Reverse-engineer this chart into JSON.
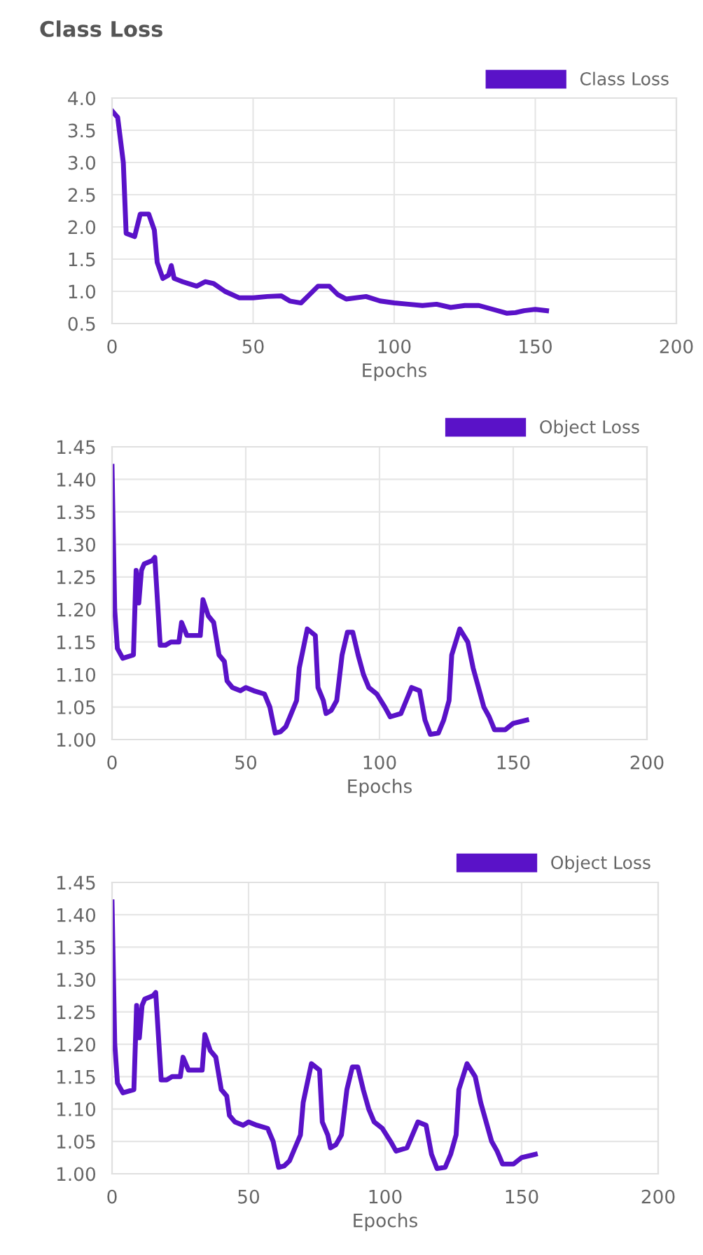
{
  "chart_data": [
    {
      "type": "line",
      "title": "Class Loss",
      "xlabel": "Epochs",
      "xlim": [
        0,
        200
      ],
      "xticks": [
        0,
        50,
        100,
        150,
        200
      ],
      "ylim": [
        0.5,
        4.0
      ],
      "yticks": [
        {
          "value": 0.5,
          "label": "0.5"
        },
        {
          "value": 1.0,
          "label": "1.0"
        },
        {
          "value": 1.5,
          "label": "1.5"
        },
        {
          "value": 2.0,
          "label": "2.0"
        },
        {
          "value": 2.5,
          "label": "2.5"
        },
        {
          "value": 3.0,
          "label": "3.0"
        },
        {
          "value": 3.5,
          "label": "3.5"
        },
        {
          "value": 4.0,
          "label": "4.0"
        }
      ],
      "grid": true,
      "legend": "top right",
      "series": [
        {
          "name": "Class Loss",
          "color": "#5a12c8",
          "x": [
            0,
            2,
            4,
            5,
            8,
            10,
            13,
            15,
            16,
            18,
            20,
            21,
            22,
            25,
            30,
            33,
            36,
            40,
            45,
            50,
            55,
            60,
            63,
            67,
            70,
            73,
            77,
            80,
            83,
            90,
            95,
            100,
            105,
            110,
            115,
            120,
            125,
            130,
            135,
            140,
            143,
            146,
            150,
            154
          ],
          "values": [
            3.8,
            3.7,
            3.0,
            1.9,
            1.85,
            2.2,
            2.2,
            1.95,
            1.45,
            1.2,
            1.25,
            1.4,
            1.2,
            1.15,
            1.08,
            1.15,
            1.12,
            1.0,
            0.9,
            0.9,
            0.92,
            0.93,
            0.85,
            0.82,
            0.95,
            1.08,
            1.08,
            0.95,
            0.88,
            0.92,
            0.85,
            0.82,
            0.8,
            0.78,
            0.8,
            0.75,
            0.78,
            0.78,
            0.72,
            0.66,
            0.67,
            0.7,
            0.72,
            0.7
          ]
        }
      ]
    },
    {
      "type": "line",
      "xlabel": "Epochs",
      "xlim": [
        0,
        200
      ],
      "xticks": [
        0,
        50,
        100,
        150,
        200
      ],
      "ylim": [
        1.0,
        1.45
      ],
      "yticks": [
        {
          "value": 1.0,
          "label": "1.00"
        },
        {
          "value": 1.05,
          "label": "1.05"
        },
        {
          "value": 1.1,
          "label": "1.10"
        },
        {
          "value": 1.15,
          "label": "1.15"
        },
        {
          "value": 1.2,
          "label": "1.20"
        },
        {
          "value": 1.25,
          "label": "1.25"
        },
        {
          "value": 1.3,
          "label": "1.30"
        },
        {
          "value": 1.35,
          "label": "1.35"
        },
        {
          "value": 1.4,
          "label": "1.40"
        },
        {
          "value": 1.45,
          "label": "1.45"
        }
      ],
      "grid": true,
      "legend": "top right",
      "series": [
        {
          "name": "Object Loss",
          "color": "#5a12c8",
          "x": [
            0,
            1,
            2,
            4,
            8,
            9,
            10,
            11,
            12,
            15,
            16,
            18,
            20,
            22,
            25,
            26,
            28,
            33,
            34,
            36,
            38,
            40,
            42,
            43,
            45,
            48,
            50,
            53,
            57,
            59,
            61,
            63,
            65,
            67,
            69,
            70,
            71,
            73,
            76,
            77,
            79,
            80,
            82,
            84,
            86,
            88,
            90,
            92,
            94,
            96,
            99,
            102,
            104,
            108,
            110,
            112,
            115,
            117,
            119,
            122,
            124,
            126,
            127,
            130,
            133,
            135,
            137,
            139,
            141,
            143,
            147,
            150,
            155
          ],
          "values": [
            1.42,
            1.2,
            1.14,
            1.125,
            1.13,
            1.26,
            1.21,
            1.26,
            1.27,
            1.275,
            1.28,
            1.145,
            1.145,
            1.15,
            1.15,
            1.18,
            1.16,
            1.16,
            1.215,
            1.19,
            1.18,
            1.13,
            1.12,
            1.09,
            1.08,
            1.075,
            1.08,
            1.075,
            1.07,
            1.05,
            1.01,
            1.012,
            1.02,
            1.04,
            1.06,
            1.11,
            1.13,
            1.17,
            1.16,
            1.08,
            1.06,
            1.04,
            1.045,
            1.06,
            1.13,
            1.165,
            1.165,
            1.13,
            1.1,
            1.08,
            1.07,
            1.05,
            1.035,
            1.04,
            1.06,
            1.08,
            1.075,
            1.03,
            1.008,
            1.01,
            1.03,
            1.06,
            1.13,
            1.17,
            1.15,
            1.11,
            1.08,
            1.05,
            1.035,
            1.015,
            1.015,
            1.025,
            1.03
          ]
        }
      ]
    },
    {
      "type": "line",
      "xlabel": "Epochs",
      "xlim": [
        0,
        200
      ],
      "xticks": [
        0,
        50,
        100,
        150,
        200
      ],
      "ylim": [
        1.0,
        1.45
      ],
      "yticks": [
        {
          "value": 1.0,
          "label": "1.00"
        },
        {
          "value": 1.05,
          "label": "1.05"
        },
        {
          "value": 1.1,
          "label": "1.10"
        },
        {
          "value": 1.15,
          "label": "1.15"
        },
        {
          "value": 1.2,
          "label": "1.20"
        },
        {
          "value": 1.25,
          "label": "1.25"
        },
        {
          "value": 1.3,
          "label": "1.30"
        },
        {
          "value": 1.35,
          "label": "1.35"
        },
        {
          "value": 1.4,
          "label": "1.40"
        },
        {
          "value": 1.45,
          "label": "1.45"
        }
      ],
      "grid": true,
      "legend": "top right",
      "series": [
        {
          "name": "Object Loss",
          "color": "#5a12c8",
          "x": [
            0,
            1,
            2,
            4,
            8,
            9,
            10,
            11,
            12,
            15,
            16,
            18,
            20,
            22,
            25,
            26,
            28,
            33,
            34,
            36,
            38,
            40,
            42,
            43,
            45,
            48,
            50,
            53,
            57,
            59,
            61,
            63,
            65,
            67,
            69,
            70,
            71,
            73,
            76,
            77,
            79,
            80,
            82,
            84,
            86,
            88,
            90,
            92,
            94,
            96,
            99,
            102,
            104,
            108,
            110,
            112,
            115,
            117,
            119,
            122,
            124,
            126,
            127,
            130,
            133,
            135,
            137,
            139,
            141,
            143,
            147,
            150,
            155
          ],
          "values": [
            1.42,
            1.2,
            1.14,
            1.125,
            1.13,
            1.26,
            1.21,
            1.26,
            1.27,
            1.275,
            1.28,
            1.145,
            1.145,
            1.15,
            1.15,
            1.18,
            1.16,
            1.16,
            1.215,
            1.19,
            1.18,
            1.13,
            1.12,
            1.09,
            1.08,
            1.075,
            1.08,
            1.075,
            1.07,
            1.05,
            1.01,
            1.012,
            1.02,
            1.04,
            1.06,
            1.11,
            1.13,
            1.17,
            1.16,
            1.08,
            1.06,
            1.04,
            1.045,
            1.06,
            1.13,
            1.165,
            1.165,
            1.13,
            1.1,
            1.08,
            1.07,
            1.05,
            1.035,
            1.04,
            1.06,
            1.08,
            1.075,
            1.03,
            1.008,
            1.01,
            1.03,
            1.06,
            1.13,
            1.17,
            1.15,
            1.11,
            1.08,
            1.05,
            1.035,
            1.015,
            1.015,
            1.025,
            1.03
          ]
        }
      ]
    }
  ]
}
